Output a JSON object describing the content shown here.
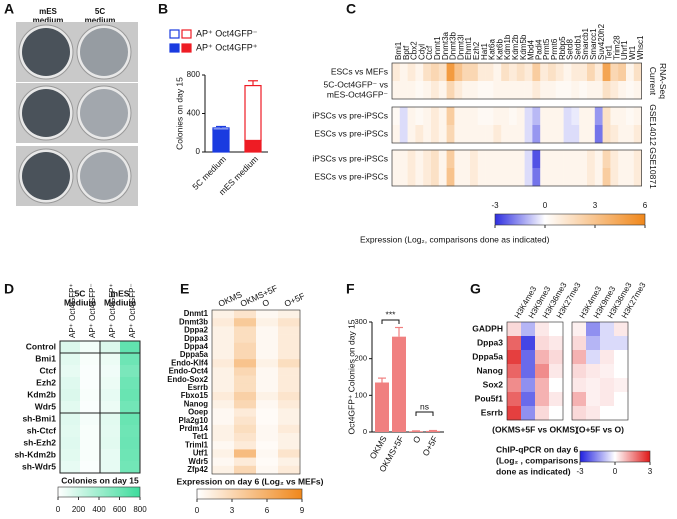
{
  "panel_labels": [
    "A",
    "B",
    "C",
    "D",
    "E",
    "F",
    "G"
  ],
  "panel_a": {
    "columns": [
      [
        "mES",
        "medium"
      ],
      [
        "5C",
        "medium"
      ]
    ]
  },
  "chart_data": [
    {
      "type": "stacked_bar",
      "y_label": "Colonies on day 15",
      "categories": [
        "5C medium",
        "mES medium"
      ],
      "category_colors": [
        "#1a3be0",
        "#ee1c24"
      ],
      "series": [
        {
          "name": "AP⁺ Oct4GFP⁻",
          "style": "outline",
          "values": [
            20,
            570
          ]
        },
        {
          "name": "AP⁺ Oct4GFP⁺",
          "style": "filled",
          "values": [
            230,
            120
          ]
        }
      ],
      "errors": [
        15,
        50
      ],
      "ylim": [
        0,
        800
      ],
      "yticks": [
        0,
        400,
        800
      ]
    },
    {
      "type": "heatmap_groups",
      "columns": [
        "Bmi1",
        "Bptf",
        "Cbx2",
        "Cdyl",
        "Ctcf",
        "Dnmt1",
        "Dnmt3a",
        "Dnmt3b",
        "Dnmt3l",
        "Ehmt1",
        "Ezh2",
        "Hat1",
        "Kat6a",
        "Kat6b",
        "Kdm1b",
        "Kdm2b",
        "Kdm5b",
        "Mbd4",
        "Padi4",
        "Prmt5",
        "Prmt6",
        "Rbbp5",
        "Setd8",
        "Setdb1",
        "Smarcb1",
        "Smarcc1",
        "Suv420h2",
        "Tet1",
        "Trim28",
        "Uhrf1",
        "Wt1",
        "Whsc1"
      ],
      "groups": [
        {
          "name": [
            "Current",
            "RNA-Seq"
          ],
          "rows": [
            {
              "label": [
                "ESCs vs MEFs"
              ],
              "values": [
                1,
                0.5,
                1,
                0.5,
                1.5,
                2,
                1.5,
                5,
                3,
                2,
                2,
                1,
                1,
                0.5,
                1.5,
                1,
                1.5,
                1,
                2.5,
                1,
                1.5,
                1,
                0.5,
                1,
                1,
                2,
                1,
                4.5,
                2,
                2.5,
                0.5,
                1.5
              ]
            },
            {
              "label": [
                "5C-Oct4GFP⁻ vs",
                "mES-Oct4GFP⁻"
              ],
              "values": [
                0.5,
                0.5,
                0.5,
                0.3,
                0.5,
                1,
                0.5,
                2,
                1,
                0.5,
                0.5,
                0.3,
                0.3,
                0.5,
                0.5,
                0.5,
                0.5,
                0.5,
                1,
                0.5,
                0.5,
                0.3,
                0.3,
                0.5,
                0.3,
                0.5,
                0.5,
                1.5,
                1,
                0.5,
                0.3,
                0.5
              ]
            }
          ]
        },
        {
          "name": [
            "GSE14012"
          ],
          "rows": [
            {
              "label": [
                "iPSCs vs pre-iPSCs"
              ],
              "values": [
                0.3,
                -0.5,
                0.5,
                0.3,
                0.5,
                1,
                0.5,
                2.5,
                0.5,
                0.5,
                0.5,
                0.3,
                0.3,
                0.5,
                0.5,
                0.3,
                0.5,
                -0.5,
                -1,
                0.5,
                0.5,
                0.5,
                -0.5,
                -0.3,
                0.5,
                0.5,
                -1.5,
                1.5,
                0.5,
                0.5,
                0.3,
                0.5
              ]
            },
            {
              "label": [
                "ESCs vs pre-iPSCs"
              ],
              "values": [
                0.5,
                -0.5,
                0.5,
                1,
                0.5,
                1,
                0.5,
                2,
                0.5,
                0.5,
                0.5,
                0.5,
                0.5,
                1,
                0.5,
                0.5,
                0.5,
                -0.5,
                -1.5,
                0.5,
                0.5,
                0.5,
                -0.5,
                -0.5,
                0.5,
                0.5,
                -2,
                1.5,
                1,
                0.5,
                0.5,
                1
              ]
            }
          ]
        },
        {
          "name": [
            "GSE10871"
          ],
          "rows": [
            {
              "label": [
                "iPSCs vs pre-iPSCs"
              ],
              "values": [
                0.5,
                0.5,
                1,
                0.5,
                1,
                1.5,
                0.5,
                2.5,
                0.5,
                0.5,
                1,
                0.5,
                0.5,
                0.5,
                0.5,
                0.5,
                0.5,
                -0.5,
                -2.5,
                0.5,
                0.5,
                0.5,
                0.5,
                0.5,
                0.5,
                1,
                0.5,
                2,
                1,
                0.5,
                0.5,
                1
              ]
            },
            {
              "label": [
                "ESCs vs pre-iPSCs"
              ],
              "values": [
                0.5,
                0.5,
                1,
                0.5,
                1,
                1.5,
                0.5,
                3,
                0.5,
                0.5,
                1,
                0.5,
                0.5,
                0.5,
                0.5,
                0.5,
                0.5,
                -0.5,
                -2,
                0.5,
                0.5,
                0.5,
                0.5,
                0.5,
                0.5,
                1,
                0.5,
                2.5,
                1,
                0.5,
                0.5,
                1
              ]
            }
          ]
        }
      ],
      "colorbar_title": "Expression (Log₂, comparisons done as indicated)",
      "colormap": [
        "#2e2ee0",
        "#ffffff",
        "#f0871a"
      ],
      "clim": [
        -3,
        6
      ],
      "cbar_ticks": [
        -3,
        0,
        3,
        6
      ]
    },
    {
      "type": "heatmap_rows",
      "column_groups": [
        [
          "5C",
          "Medium"
        ],
        [
          "mES",
          "Medium"
        ]
      ],
      "columns": [
        "AP⁺ Oct4GFP⁺",
        "AP⁺ Oct4GFP⁻",
        "AP⁺ Oct4GFP⁺",
        "AP⁺ Oct4GFP⁻"
      ],
      "rows": [
        {
          "label": "Control",
          "values": [
            150,
            50,
            150,
            650
          ]
        },
        {
          "label": "Bmi1",
          "values": [
            120,
            30,
            80,
            600
          ]
        },
        {
          "label": "Ctcf",
          "values": [
            100,
            20,
            60,
            550
          ]
        },
        {
          "label": "Ezh2",
          "values": [
            130,
            20,
            80,
            600
          ]
        },
        {
          "label": "Kdm2b",
          "values": [
            150,
            30,
            100,
            620
          ]
        },
        {
          "label": "Wdr5",
          "values": [
            120,
            20,
            80,
            580
          ]
        },
        {
          "label": "sh-Bmi1",
          "values": [
            130,
            40,
            120,
            620
          ]
        },
        {
          "label": "sh-Ctcf",
          "values": [
            120,
            30,
            110,
            600
          ]
        },
        {
          "label": "sh-Ezh2",
          "values": [
            130,
            30,
            120,
            610
          ]
        },
        {
          "label": "sh-Kdm2b",
          "values": [
            120,
            30,
            100,
            600
          ]
        },
        {
          "label": "sh-Wdr5",
          "values": [
            100,
            20,
            100,
            580
          ]
        }
      ],
      "colorbar_title": "Colonies on day 15",
      "colormap": [
        "#ffffff",
        "#3ddc9c"
      ],
      "clim": [
        0,
        800
      ],
      "cbar_ticks": [
        0,
        200,
        400,
        600,
        800
      ]
    },
    {
      "type": "heatmap_rows",
      "columns": [
        "OKMS",
        "OKMS+5F",
        "O",
        "O+5F"
      ],
      "rows": [
        {
          "label": "Dnmt1",
          "values": [
            1,
            2,
            0.5,
            1
          ]
        },
        {
          "label": "Dnmt3b",
          "values": [
            1.5,
            4,
            1,
            2
          ]
        },
        {
          "label": "Dppa2",
          "values": [
            1,
            2.5,
            0.5,
            1.5
          ]
        },
        {
          "label": "Dppa3",
          "values": [
            1,
            2.5,
            0.5,
            1.5
          ]
        },
        {
          "label": "Dppa4",
          "values": [
            1,
            3,
            0.5,
            1.5
          ]
        },
        {
          "label": "Dppa5a",
          "values": [
            1,
            3,
            0.5,
            1.5
          ]
        },
        {
          "label": "Endo-Klf4",
          "values": [
            1.5,
            4.5,
            1,
            2.5
          ]
        },
        {
          "label": "Endo-Oct4",
          "values": [
            1,
            3,
            0.5,
            1.5
          ]
        },
        {
          "label": "Endo-Sox2",
          "values": [
            1,
            2.5,
            0.5,
            1.5
          ]
        },
        {
          "label": "Esrrb",
          "values": [
            1,
            2.5,
            0.5,
            1.5
          ]
        },
        {
          "label": "Fbxo15",
          "values": [
            1.5,
            3.5,
            1,
            2
          ]
        },
        {
          "label": "Nanog",
          "values": [
            1,
            3,
            0.5,
            1.5
          ]
        },
        {
          "label": "Ooep",
          "values": [
            0.5,
            1.5,
            0.3,
            1
          ]
        },
        {
          "label": "Pla2g10",
          "values": [
            0.5,
            2,
            0.3,
            1
          ]
        },
        {
          "label": "Prdm14",
          "values": [
            1,
            2.5,
            0.5,
            1.5
          ]
        },
        {
          "label": "Tet1",
          "values": [
            1,
            2,
            0.5,
            1
          ]
        },
        {
          "label": "Triml1",
          "values": [
            0.5,
            1.5,
            0.3,
            1
          ]
        },
        {
          "label": "Utf1",
          "values": [
            1,
            5,
            0.5,
            2
          ]
        },
        {
          "label": "Wdr5",
          "values": [
            0.5,
            1.5,
            0.3,
            1
          ]
        },
        {
          "label": "Zfp42",
          "values": [
            1,
            3,
            0.5,
            1.5
          ]
        }
      ],
      "colorbar_title": "Expression on day 6 (Log₂ vs MEFs)",
      "colormap": [
        "#ffffff",
        "#f0871a"
      ],
      "clim": [
        0,
        9
      ],
      "cbar_ticks": [
        0,
        3,
        6,
        9
      ]
    },
    {
      "type": "bar",
      "y_label": "Oct4GFP⁺ Colonies on day 15",
      "categories": [
        "OKMS",
        "OKMS+5F",
        "O",
        "O+5F"
      ],
      "values": [
        135,
        260,
        2,
        3
      ],
      "errors": [
        12,
        25,
        1,
        1
      ],
      "color": "#f08080",
      "ylim": [
        0,
        300
      ],
      "yticks": [
        0,
        100,
        200,
        300
      ],
      "annotations": [
        "***",
        "ns"
      ]
    },
    {
      "type": "heatmap_panels",
      "columns": [
        "H3K4me3",
        "H3K9me3",
        "H3K36me3",
        "H3K27me3"
      ],
      "rows": [
        "GADPH",
        "Dppa3",
        "Dppa5a",
        "Nanog",
        "Sox2",
        "Pou5f1",
        "Esrrb"
      ],
      "panels": [
        {
          "caption": "(OKMS+5F vs OKMS)",
          "values": [
            [
              0.5,
              -1,
              0.3,
              0
            ],
            [
              2,
              -2.5,
              0.5,
              0.3
            ],
            [
              2.5,
              -2,
              1,
              0.5
            ],
            [
              2,
              -2,
              1.5,
              0.3
            ],
            [
              1.5,
              -1.5,
              1,
              0
            ],
            [
              2,
              -2,
              1,
              0.3
            ],
            [
              2.5,
              -1.5,
              0.5,
              0
            ]
          ]
        },
        {
          "caption": "(O+5F vs O)",
          "values": [
            [
              0.2,
              -1.5,
              -0.5,
              0.3
            ],
            [
              0.5,
              -1,
              -0.5,
              -0.5
            ],
            [
              1,
              -0.5,
              0.3,
              0
            ],
            [
              0.5,
              0.3,
              0.2,
              0
            ],
            [
              0.3,
              0.2,
              0.3,
              0.2
            ],
            [
              1,
              0.2,
              0.3,
              0
            ],
            [
              0.5,
              0.3,
              0,
              0
            ]
          ]
        }
      ],
      "colorbar_title": [
        "ChIP-qPCR on day 6",
        "(Log₂ , comparisons",
        "done as indicated)"
      ],
      "colormap": [
        "#2020e0",
        "#ffffff",
        "#e01818"
      ],
      "clim": [
        -3,
        3
      ],
      "cbar_ticks": [
        -3,
        0,
        3
      ]
    }
  ]
}
